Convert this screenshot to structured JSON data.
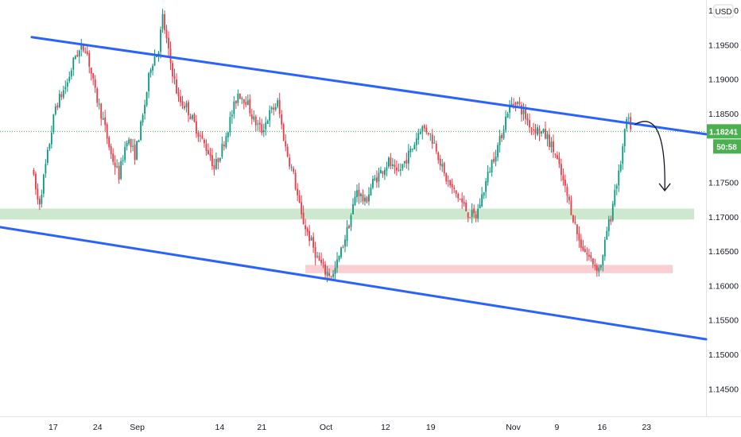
{
  "currency_button": "USD",
  "price_badge": "1.18241",
  "countdown_badge": "50:58",
  "colors": {
    "up": "#089981",
    "down": "#f23645",
    "channel": "#2962ff",
    "support_zone": "#a5d6a7",
    "low_zone": "#f8a5ad",
    "price_line": "#4caf50"
  },
  "chart_data": {
    "type": "candlestick",
    "ylim": [
      1.141,
      1.2015
    ],
    "xlim": [
      -4,
      85
    ],
    "y_ticks": [
      "1.20000",
      "1.19500",
      "1.19000",
      "1.18500",
      "1.18241",
      "1.17500",
      "1.17000",
      "1.16500",
      "1.16000",
      "1.15500",
      "1.15000",
      "1.14500"
    ],
    "x_ticks": [
      {
        "label": "17",
        "x": 2.7
      },
      {
        "label": "24",
        "x": 8.3
      },
      {
        "label": "Sep",
        "x": 13.3
      },
      {
        "label": "14",
        "x": 23.7
      },
      {
        "label": "21",
        "x": 29.0
      },
      {
        "label": "Oct",
        "x": 37.1
      },
      {
        "label": "12",
        "x": 44.6
      },
      {
        "label": "19",
        "x": 50.3
      },
      {
        "label": "Nov",
        "x": 60.7
      },
      {
        "label": "9",
        "x": 66.2
      },
      {
        "label": "16",
        "x": 71.9
      },
      {
        "label": "23",
        "x": 77.5
      }
    ],
    "anchors": [
      [
        0,
        1.177
      ],
      [
        0.9,
        1.1715
      ],
      [
        3,
        1.186
      ],
      [
        4.5,
        1.1895
      ],
      [
        5.5,
        1.1935
      ],
      [
        6.8,
        1.1948
      ],
      [
        8,
        1.188
      ],
      [
        9,
        1.184
      ],
      [
        10,
        1.179
      ],
      [
        11,
        1.176
      ],
      [
        12,
        1.1815
      ],
      [
        13,
        1.179
      ],
      [
        14,
        1.1845
      ],
      [
        15,
        1.192
      ],
      [
        16,
        1.1945
      ],
      [
        16.5,
        1.199
      ],
      [
        17.3,
        1.1935
      ],
      [
        18.5,
        1.187
      ],
      [
        19.5,
        1.186
      ],
      [
        20.5,
        1.1835
      ],
      [
        21.5,
        1.181
      ],
      [
        22.5,
        1.179
      ],
      [
        23,
        1.177
      ],
      [
        24,
        1.18
      ],
      [
        25,
        1.184
      ],
      [
        26,
        1.188
      ],
      [
        27,
        1.187
      ],
      [
        28,
        1.184
      ],
      [
        29,
        1.1825
      ],
      [
        30,
        1.185
      ],
      [
        31,
        1.1865
      ],
      [
        32,
        1.18
      ],
      [
        33,
        1.176
      ],
      [
        34,
        1.17
      ],
      [
        35,
        1.167
      ],
      [
        36,
        1.164
      ],
      [
        37,
        1.162
      ],
      [
        38,
        1.1615
      ],
      [
        39,
        1.165
      ],
      [
        40,
        1.169
      ],
      [
        41,
        1.174
      ],
      [
        42,
        1.172
      ],
      [
        43,
        1.175
      ],
      [
        44,
        1.1765
      ],
      [
        45,
        1.178
      ],
      [
        46,
        1.176
      ],
      [
        47,
        1.178
      ],
      [
        48,
        1.18
      ],
      [
        49,
        1.183
      ],
      [
        50,
        1.1825
      ],
      [
        51,
        1.18
      ],
      [
        52,
        1.176
      ],
      [
        53,
        1.174
      ],
      [
        54,
        1.1725
      ],
      [
        55,
        1.1705
      ],
      [
        56,
        1.17
      ],
      [
        57,
        1.174
      ],
      [
        58,
        1.178
      ],
      [
        59,
        1.181
      ],
      [
        60,
        1.1855
      ],
      [
        61,
        1.187
      ],
      [
        62,
        1.185
      ],
      [
        63,
        1.183
      ],
      [
        64,
        1.1825
      ],
      [
        65,
        1.1815
      ],
      [
        66,
        1.179
      ],
      [
        67,
        1.175
      ],
      [
        68,
        1.171
      ],
      [
        69,
        1.1665
      ],
      [
        70,
        1.1645
      ],
      [
        71,
        1.163
      ],
      [
        71.5,
        1.1625
      ],
      [
        72,
        1.164
      ],
      [
        72.5,
        1.168
      ],
      [
        73,
        1.17
      ],
      [
        73.5,
        1.174
      ],
      [
        74,
        1.176
      ],
      [
        74.5,
        1.18
      ],
      [
        75,
        1.184
      ],
      [
        75.5,
        1.1832
      ]
    ],
    "channel_upper": {
      "from": [
        0,
        1.1961
      ],
      "to": [
        85,
        1.182
      ]
    },
    "channel_lower": {
      "from": [
        -4,
        1.1685
      ],
      "to": [
        85,
        1.1522
      ]
    },
    "support_zone": {
      "x": [
        -4,
        83.5
      ],
      "y": [
        1.1696,
        1.1712
      ]
    },
    "low_zone": {
      "x": [
        34.5,
        80.8
      ],
      "y": [
        1.1618,
        1.163
      ]
    },
    "current_price": 1.18241,
    "projection": {
      "from": [
        76,
        1.1834
      ],
      "ctrl": [
        80,
        1.186
      ],
      "to": [
        79.8,
        1.1738
      ]
    }
  }
}
